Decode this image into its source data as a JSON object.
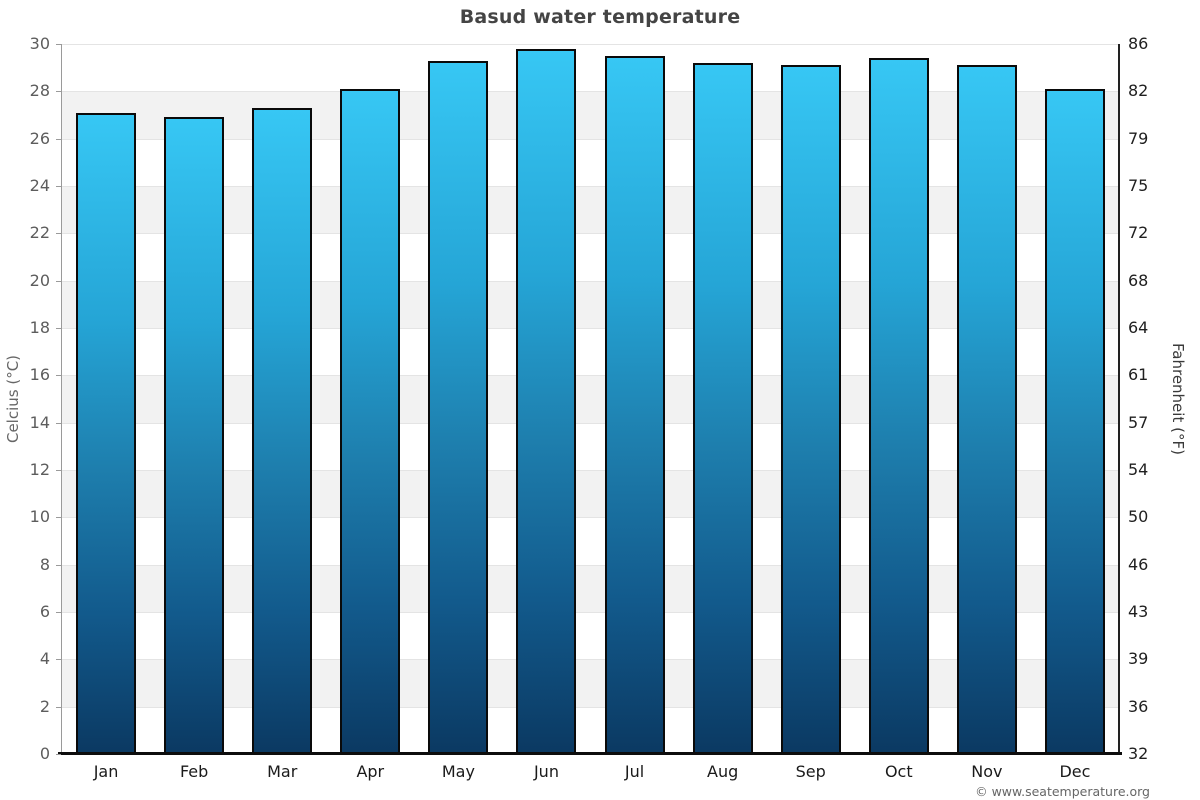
{
  "title": "Basud water temperature",
  "footer": {
    "copyright": "© www.seatemperature.org"
  },
  "chart_data": {
    "type": "bar",
    "title": "Basud water temperature",
    "categories": [
      "Jan",
      "Feb",
      "Mar",
      "Apr",
      "May",
      "Jun",
      "Jul",
      "Aug",
      "Sep",
      "Oct",
      "Nov",
      "Dec"
    ],
    "series": [
      {
        "name": "Water temperature",
        "unit": "°C",
        "values": [
          27.1,
          26.9,
          27.3,
          28.1,
          29.3,
          29.8,
          29.5,
          29.2,
          29.1,
          29.4,
          29.1,
          28.1
        ]
      }
    ],
    "axes": {
      "left": {
        "label": "Celcius (°C)",
        "ticks": [
          0,
          2,
          4,
          6,
          8,
          10,
          12,
          14,
          16,
          18,
          20,
          22,
          24,
          26,
          28,
          30
        ],
        "range": [
          0,
          30
        ]
      },
      "right": {
        "label": "Fahrenheit (°F)",
        "ticks": [
          32,
          36,
          39,
          43,
          46,
          50,
          54,
          57,
          61,
          64,
          68,
          72,
          75,
          79,
          82,
          86
        ]
      }
    },
    "layout_hints": {
      "grid": "alternating horizontal bands, 2°C each",
      "legend": "none"
    },
    "colors": {
      "bar_gradient_top": "#37c7f4",
      "bar_gradient_upper_mid": "#25a5d6",
      "bar_gradient_mid": "#1e7fae",
      "bar_gradient_lower_mid": "#125a8c",
      "bar_gradient_bottom": "#0b3962",
      "bar_border": "#0a0a0a",
      "band_gray": "#f2f2f2",
      "band_white": "#ffffff",
      "title_text": "#444444",
      "left_tick_text": "#5d5d5d",
      "right_tick_text": "#1f1f1f"
    }
  }
}
